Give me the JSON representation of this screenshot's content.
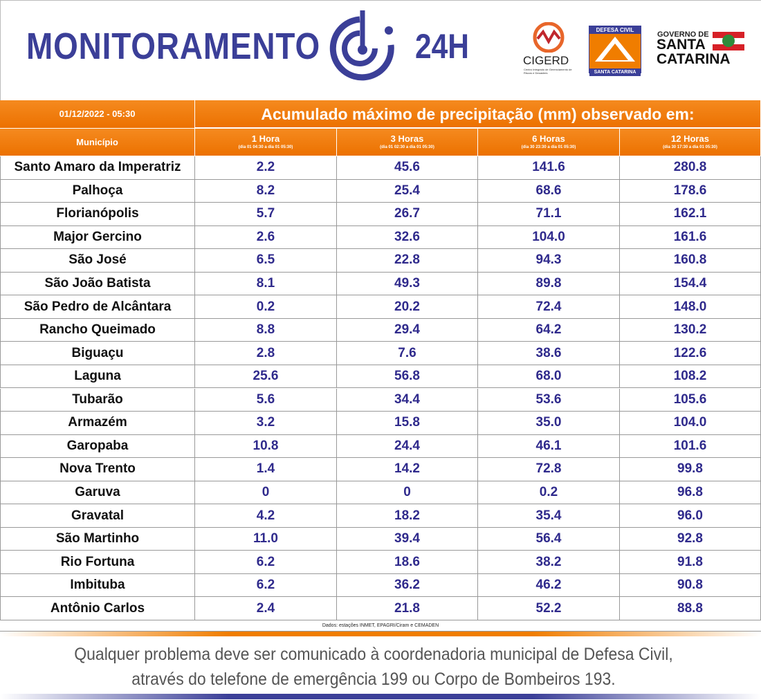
{
  "header": {
    "title": "MONITORAMENTO",
    "title_suffix": "24H",
    "logos": {
      "cigerd": "CIGERD",
      "cigerd_subtitle": "Centro Integrado de Gerenciamento de Riscos e Desastres",
      "defesa_top": "DEFESA CIVIL",
      "defesa_bottom": "SANTA CATARINA",
      "governo_top": "GOVERNO DE",
      "governo_line1": "SANTA",
      "governo_line2": "CATARINA"
    }
  },
  "table": {
    "date": "01/12/2022 - 05:30",
    "caption": "Acumulado máximo de precipitação (mm) observado em:",
    "first_column": "Município",
    "columns": [
      {
        "name": "1 Hora",
        "period": "(dia 01 04:30 a dia 01 05:30)"
      },
      {
        "name": "3 Horas",
        "period": "(dia 01 02:30 a dia 01 05:30)"
      },
      {
        "name": "6 Horas",
        "period": "(dia 30 23:30 a dia 01 05:30)"
      },
      {
        "name": "12 Horas",
        "period": "(dia 30 17:30 a dia 01 05:30)"
      }
    ],
    "rows": [
      [
        "Santo Amaro da Imperatriz",
        "2.2",
        "45.6",
        "141.6",
        "280.8"
      ],
      [
        "Palhoça",
        "8.2",
        "25.4",
        "68.6",
        "178.6"
      ],
      [
        "Florianópolis",
        "5.7",
        "26.7",
        "71.1",
        "162.1"
      ],
      [
        "Major Gercino",
        "2.6",
        "32.6",
        "104.0",
        "161.6"
      ],
      [
        "São José",
        "6.5",
        "22.8",
        "94.3",
        "160.8"
      ],
      [
        "São João Batista",
        "8.1",
        "49.3",
        "89.8",
        "154.4"
      ],
      [
        "São Pedro de Alcântara",
        "0.2",
        "20.2",
        "72.4",
        "148.0"
      ],
      [
        "Rancho Queimado",
        "8.8",
        "29.4",
        "64.2",
        "130.2"
      ],
      [
        "Biguaçu",
        "2.8",
        "7.6",
        "38.6",
        "122.6"
      ],
      [
        "Laguna",
        "25.6",
        "56.8",
        "68.0",
        "108.2"
      ],
      [
        "Tubarão",
        "5.6",
        "34.4",
        "53.6",
        "105.6"
      ],
      [
        "Armazém",
        "3.2",
        "15.8",
        "35.0",
        "104.0"
      ],
      [
        "Garopaba",
        "10.8",
        "24.4",
        "46.1",
        "101.6"
      ],
      [
        "Nova Trento",
        "1.4",
        "14.2",
        "72.8",
        "99.8"
      ],
      [
        "Garuva",
        "0",
        "0",
        "0.2",
        "96.8"
      ],
      [
        "Gravatal",
        "4.2",
        "18.2",
        "35.4",
        "96.0"
      ],
      [
        "São Martinho",
        "11.0",
        "39.4",
        "56.4",
        "92.8"
      ],
      [
        "Rio Fortuna",
        "6.2",
        "18.6",
        "38.2",
        "91.8"
      ],
      [
        "Imbituba",
        "6.2",
        "36.2",
        "46.2",
        "90.8"
      ],
      [
        "Antônio Carlos",
        "2.4",
        "21.8",
        "52.2",
        "88.8"
      ]
    ],
    "source": "Dados: estações INMET, EPAGRI/Ciram e CEMADEN"
  },
  "footer": {
    "line1": "Qualquer problema deve ser comunicado à coordenadoria municipal de Defesa Civil,",
    "line2": "através do telefone de emergência 199 ou Corpo de Bombeiros 193."
  }
}
